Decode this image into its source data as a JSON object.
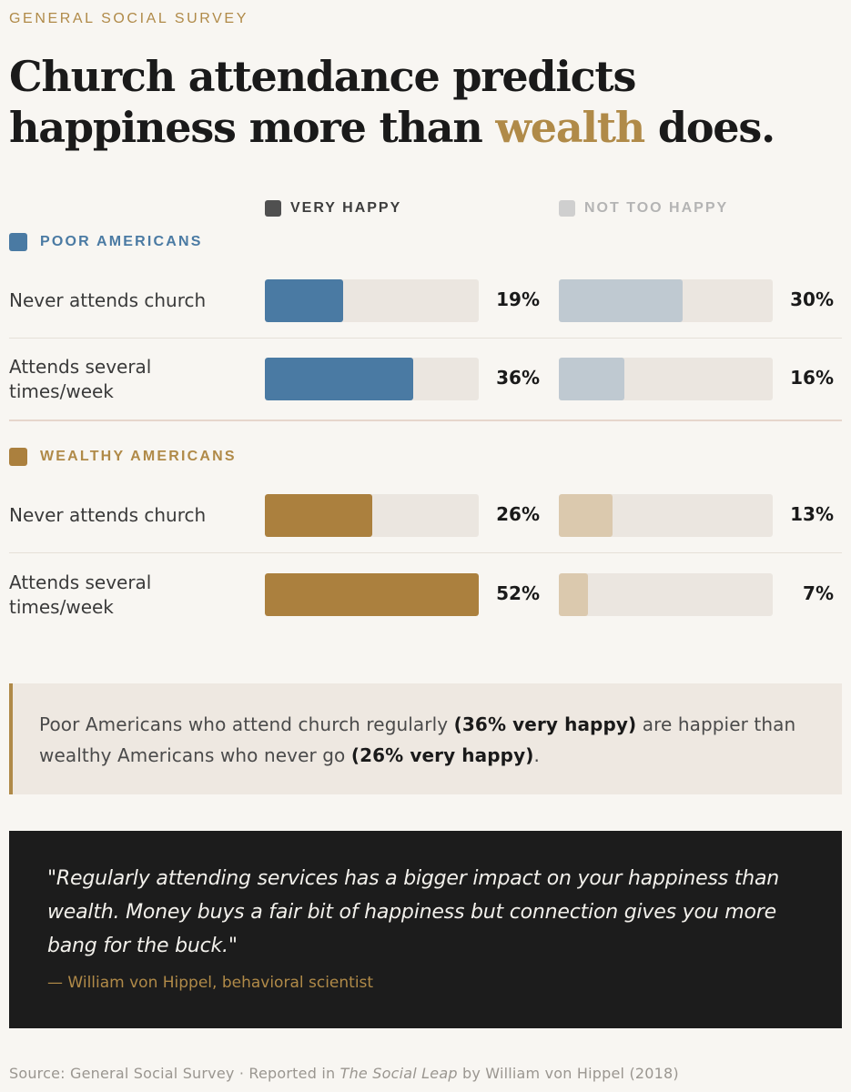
{
  "kicker": "GENERAL SOCIAL SURVEY",
  "headline": {
    "part1": "Church attendance predicts happiness more than ",
    "accent": "wealth",
    "part2": " does."
  },
  "colors": {
    "poor_very": "#4a7aa3",
    "poor_not": "#bfc9d1",
    "wealthy_very": "#ab803e",
    "wealthy_not": "#dbc9ae",
    "accent": "#b08a48"
  },
  "chart_data": {
    "type": "bar",
    "legend": [
      "VERY HAPPY",
      "NOT TOO HAPPY"
    ],
    "groups": [
      {
        "name": "POOR AMERICANS",
        "rows": [
          {
            "label": "Never attends church",
            "very_happy": 19,
            "very_label": "19%",
            "not_too_happy": 30,
            "not_label": "30%"
          },
          {
            "label": "Attends several times/week",
            "very_happy": 36,
            "very_label": "36%",
            "not_too_happy": 16,
            "not_label": "16%"
          }
        ]
      },
      {
        "name": "WEALTHY AMERICANS",
        "rows": [
          {
            "label": "Never attends church",
            "very_happy": 26,
            "very_label": "26%",
            "not_too_happy": 13,
            "not_label": "13%"
          },
          {
            "label": "Attends several times/week",
            "very_happy": 52,
            "very_label": "52%",
            "not_too_happy": 7,
            "not_label": "7%"
          }
        ]
      }
    ],
    "xlim": [
      0,
      52
    ]
  },
  "callout": {
    "text1": "Poor Americans who attend church regularly ",
    "bold1": "(36% very happy)",
    "text2": " are happier than wealthy Americans who never go ",
    "bold2": "(26% very happy)",
    "text3": "."
  },
  "quote": {
    "text": "\"Regularly attending services has a bigger impact on your happiness than wealth. Money buys a fair bit of happiness but connection gives you more bang for the buck.\"",
    "attribution": "— William von Hippel, behavioral scientist"
  },
  "source": {
    "prefix": "Source: General Social Survey · Reported in ",
    "title": "The Social Leap",
    "suffix": " by William von Hippel (2018)"
  }
}
